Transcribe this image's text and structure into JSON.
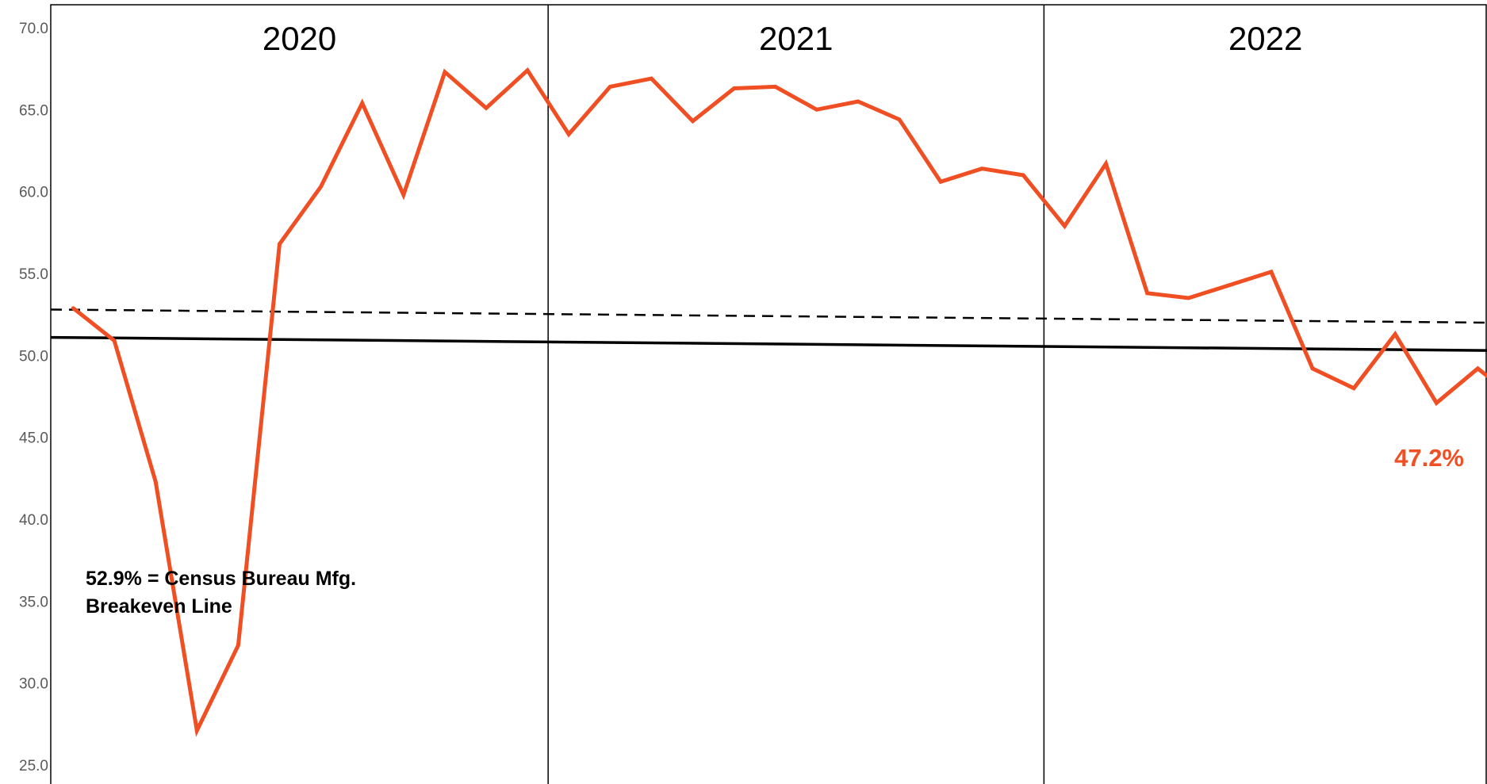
{
  "chart_data": {
    "type": "line",
    "title": "",
    "xlabel": "",
    "ylabel": "",
    "ylim": [
      25,
      70
    ],
    "yticks": [
      "70.0",
      "65.0",
      "60.0",
      "55.0",
      "50.0",
      "45.0",
      "40.0",
      "35.0",
      "30.0",
      "25.0"
    ],
    "year_sections": [
      "2020",
      "2021",
      "2022"
    ],
    "months_per_year": 12,
    "series": [
      {
        "color": "#f04e23",
        "values": [
          52.9,
          50.9,
          42.3,
          27.1,
          32.3,
          56.8,
          60.3,
          65.4,
          59.8,
          67.3,
          65.1,
          67.4,
          63.5,
          66.4,
          66.9,
          64.3,
          66.3,
          66.4,
          65.0,
          65.5,
          64.4,
          60.6,
          61.4,
          61.0,
          57.9,
          61.7,
          53.8,
          53.5,
          54.3,
          55.1,
          49.2,
          48.0,
          51.3,
          47.1,
          49.2,
          47.2
        ]
      }
    ],
    "reference_lines": [
      {
        "style": "solid",
        "color": "#000000",
        "start": 51.1,
        "end": 50.3
      },
      {
        "style": "dashed",
        "color": "#000000",
        "start": 52.8,
        "end": 52.0
      }
    ],
    "annotations": {
      "breakeven_line1": "52.9% = Census Bureau Mfg.",
      "breakeven_line2": "Breakeven Line",
      "end_label": "47.2%"
    },
    "grid": false,
    "legend": "none"
  }
}
